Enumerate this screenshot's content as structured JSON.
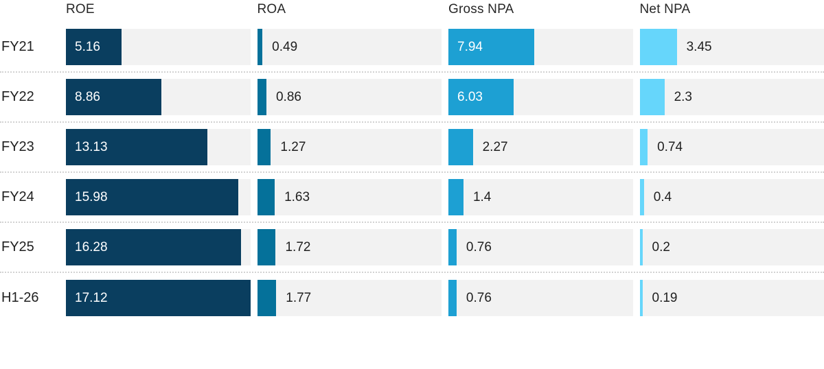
{
  "chart_data": {
    "type": "bar",
    "orientation": "horizontal",
    "title": "",
    "categories": [
      "FY21",
      "FY22",
      "FY23",
      "FY24",
      "FY25",
      "H1-26"
    ],
    "series": [
      {
        "name": "ROE",
        "color": "#0a3e5f",
        "values": [
          5.16,
          8.86,
          13.13,
          15.98,
          16.28,
          17.12
        ]
      },
      {
        "name": "ROA",
        "color": "#05719a",
        "values": [
          0.49,
          0.86,
          1.27,
          1.63,
          1.72,
          1.77
        ]
      },
      {
        "name": "Gross NPA",
        "color": "#1da0d3",
        "values": [
          7.94,
          6.03,
          2.27,
          1.4,
          0.76,
          0.76
        ]
      },
      {
        "name": "Net NPA",
        "color": "#66d6fb",
        "values": [
          3.45,
          2.3,
          0.74,
          0.4,
          0.2,
          0.19
        ]
      }
    ],
    "scale_max": 17.12,
    "track_color": "#f2f2f2",
    "separator_color": "#d2d2d2",
    "value_label_inside_color": "#ffffff",
    "value_label_outside_color": "#1f1f1f",
    "legend_position": "column-headers-top",
    "grid": false,
    "xlim": [
      0,
      17.12
    ]
  }
}
